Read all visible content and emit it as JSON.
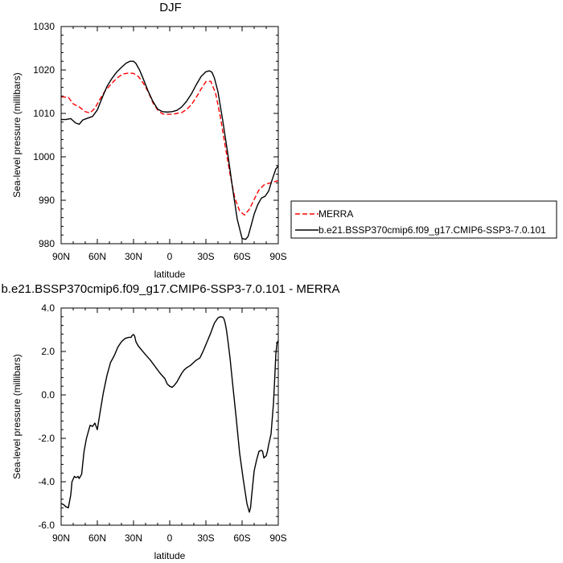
{
  "chart_data": [
    {
      "type": "line",
      "title": "DJF",
      "xlabel": "latitude",
      "ylabel": "Sea-level pressure (millibars)",
      "xlim": [
        -90,
        90
      ],
      "ylim": [
        980,
        1030
      ],
      "x_ticks": [
        -90,
        -60,
        -30,
        0,
        30,
        60,
        90
      ],
      "x_tick_labels": [
        "90N",
        "60N",
        "30N",
        "0",
        "30S",
        "60S",
        "90S"
      ],
      "y_ticks": [
        980,
        990,
        1000,
        1010,
        1020,
        1030
      ],
      "y_tick_labels": [
        "980",
        "990",
        "1000",
        "1010",
        "1020",
        "1030"
      ],
      "legend_position": "outside-right",
      "series": [
        {
          "name": "MERRA",
          "color": "#ff0000",
          "dash": "dashed",
          "x": [
            -90,
            -84,
            -80,
            -75,
            -70,
            -66,
            -62,
            -58,
            -54,
            -50,
            -46,
            -42,
            -38,
            -34,
            -30,
            -26,
            -22,
            -18,
            -14,
            -10,
            -6,
            -2,
            2,
            6,
            10,
            14,
            18,
            22,
            26,
            30,
            34,
            38,
            42,
            46,
            50,
            54,
            58,
            62,
            66,
            70,
            74,
            78,
            82,
            86,
            90
          ],
          "y": [
            1013.8,
            1013.7,
            1012.2,
            1011.5,
            1010.4,
            1010.1,
            1011.2,
            1013.2,
            1015.0,
            1016.3,
            1017.5,
            1018.5,
            1019.1,
            1019.3,
            1019.2,
            1018.5,
            1017.0,
            1015.1,
            1012.5,
            1010.8,
            1009.9,
            1009.8,
            1009.8,
            1010.0,
            1010.2,
            1010.9,
            1012.0,
            1013.7,
            1015.6,
            1017.3,
            1017.4,
            1014.7,
            1009.2,
            1002.5,
            996.0,
            990.5,
            987.5,
            986.6,
            987.9,
            990.2,
            992.4,
            993.5,
            993.9,
            994.2,
            994.5
          ]
        },
        {
          "name": "b.e21.BSSP370cmip6.f09_g17.CMIP6-SSP3-7.0.101",
          "color": "#000000",
          "dash": "solid",
          "x": [
            -90,
            -86,
            -82,
            -78,
            -75,
            -72,
            -68,
            -64,
            -60,
            -56,
            -52,
            -48,
            -44,
            -40,
            -36,
            -33,
            -30,
            -28,
            -25,
            -22,
            -18,
            -14,
            -10,
            -6,
            -2,
            2,
            6,
            10,
            14,
            18,
            22,
            26,
            30,
            33,
            35,
            37,
            40,
            44,
            48,
            52,
            56,
            60,
            63,
            65,
            67,
            70,
            73,
            76,
            79,
            82,
            85,
            88,
            90
          ],
          "y": [
            1008.6,
            1008.6,
            1008.8,
            1007.8,
            1007.5,
            1008.5,
            1008.9,
            1009.3,
            1010.8,
            1013.6,
            1016.2,
            1018.0,
            1019.5,
            1020.6,
            1021.6,
            1022.0,
            1022.0,
            1021.5,
            1020.0,
            1018.0,
            1015.2,
            1012.8,
            1011.0,
            1010.4,
            1010.3,
            1010.4,
            1010.7,
            1011.5,
            1012.8,
            1014.5,
            1016.6,
            1018.5,
            1019.6,
            1019.8,
            1019.5,
            1018.2,
            1015.0,
            1008.3,
            1001.0,
            993.0,
            985.6,
            981.2,
            981.0,
            981.7,
            983.7,
            986.8,
            989.0,
            990.5,
            990.9,
            992.1,
            994.8,
            997.2,
            997.9
          ]
        }
      ]
    },
    {
      "type": "line",
      "title": "b.e21.BSSP370cmip6.f09_g17.CMIP6-SSP3-7.0.101 - MERRA",
      "xlabel": "latitude",
      "ylabel": "Sea-level pressure (millibars)",
      "xlim": [
        -90,
        90
      ],
      "ylim": [
        -6,
        4
      ],
      "x_ticks": [
        -90,
        -60,
        -30,
        0,
        30,
        60,
        90
      ],
      "x_tick_labels": [
        "90N",
        "60N",
        "30N",
        "0",
        "30S",
        "60S",
        "90S"
      ],
      "y_ticks": [
        -6,
        -4,
        -2,
        0,
        2,
        4
      ],
      "y_tick_labels": [
        "-6.0",
        "-4.0",
        "-2.0",
        "0.0",
        "2.0",
        "4.0"
      ],
      "series": [
        {
          "color": "#000000",
          "dash": "solid",
          "x": [
            -90,
            -88,
            -86,
            -84,
            -82,
            -81,
            -79,
            -78,
            -77,
            -76,
            -75,
            -73,
            -71,
            -69,
            -67,
            -66,
            -64,
            -62,
            -60,
            -58,
            -55,
            -52,
            -49,
            -46,
            -43,
            -40,
            -37,
            -34,
            -32,
            -31,
            -30,
            -29,
            -28,
            -26,
            -23,
            -20,
            -16,
            -12,
            -8,
            -4,
            -2,
            0,
            2,
            4,
            6,
            8,
            10,
            12,
            14,
            17,
            20,
            22,
            25,
            28,
            31,
            34,
            37,
            40,
            42,
            44,
            45,
            46,
            47,
            48,
            50,
            52,
            55,
            58,
            61,
            64,
            66,
            67,
            68,
            70,
            72,
            74,
            76,
            77,
            78,
            80,
            81,
            82,
            84,
            86,
            87,
            88,
            89,
            90
          ],
          "y": [
            -5.0,
            -5.05,
            -5.15,
            -5.2,
            -4.6,
            -4.0,
            -3.75,
            -3.8,
            -3.8,
            -3.75,
            -3.85,
            -3.65,
            -2.6,
            -2.0,
            -1.6,
            -1.4,
            -1.45,
            -1.3,
            -1.6,
            -0.9,
            0.1,
            0.9,
            1.5,
            1.8,
            2.2,
            2.45,
            2.6,
            2.65,
            2.65,
            2.75,
            2.78,
            2.7,
            2.45,
            2.25,
            2.05,
            1.85,
            1.6,
            1.3,
            1.0,
            0.75,
            0.5,
            0.4,
            0.35,
            0.45,
            0.6,
            0.8,
            1.0,
            1.15,
            1.25,
            1.35,
            1.5,
            1.6,
            1.7,
            2.05,
            2.45,
            2.85,
            3.3,
            3.55,
            3.6,
            3.58,
            3.5,
            3.3,
            3.0,
            2.6,
            1.7,
            0.6,
            -1.0,
            -2.7,
            -3.9,
            -5.0,
            -5.4,
            -5.2,
            -4.6,
            -3.5,
            -3.0,
            -2.6,
            -2.55,
            -2.6,
            -2.9,
            -2.8,
            -2.6,
            -2.3,
            -1.8,
            -0.4,
            0.7,
            1.9,
            2.4,
            2.5
          ]
        }
      ]
    }
  ]
}
